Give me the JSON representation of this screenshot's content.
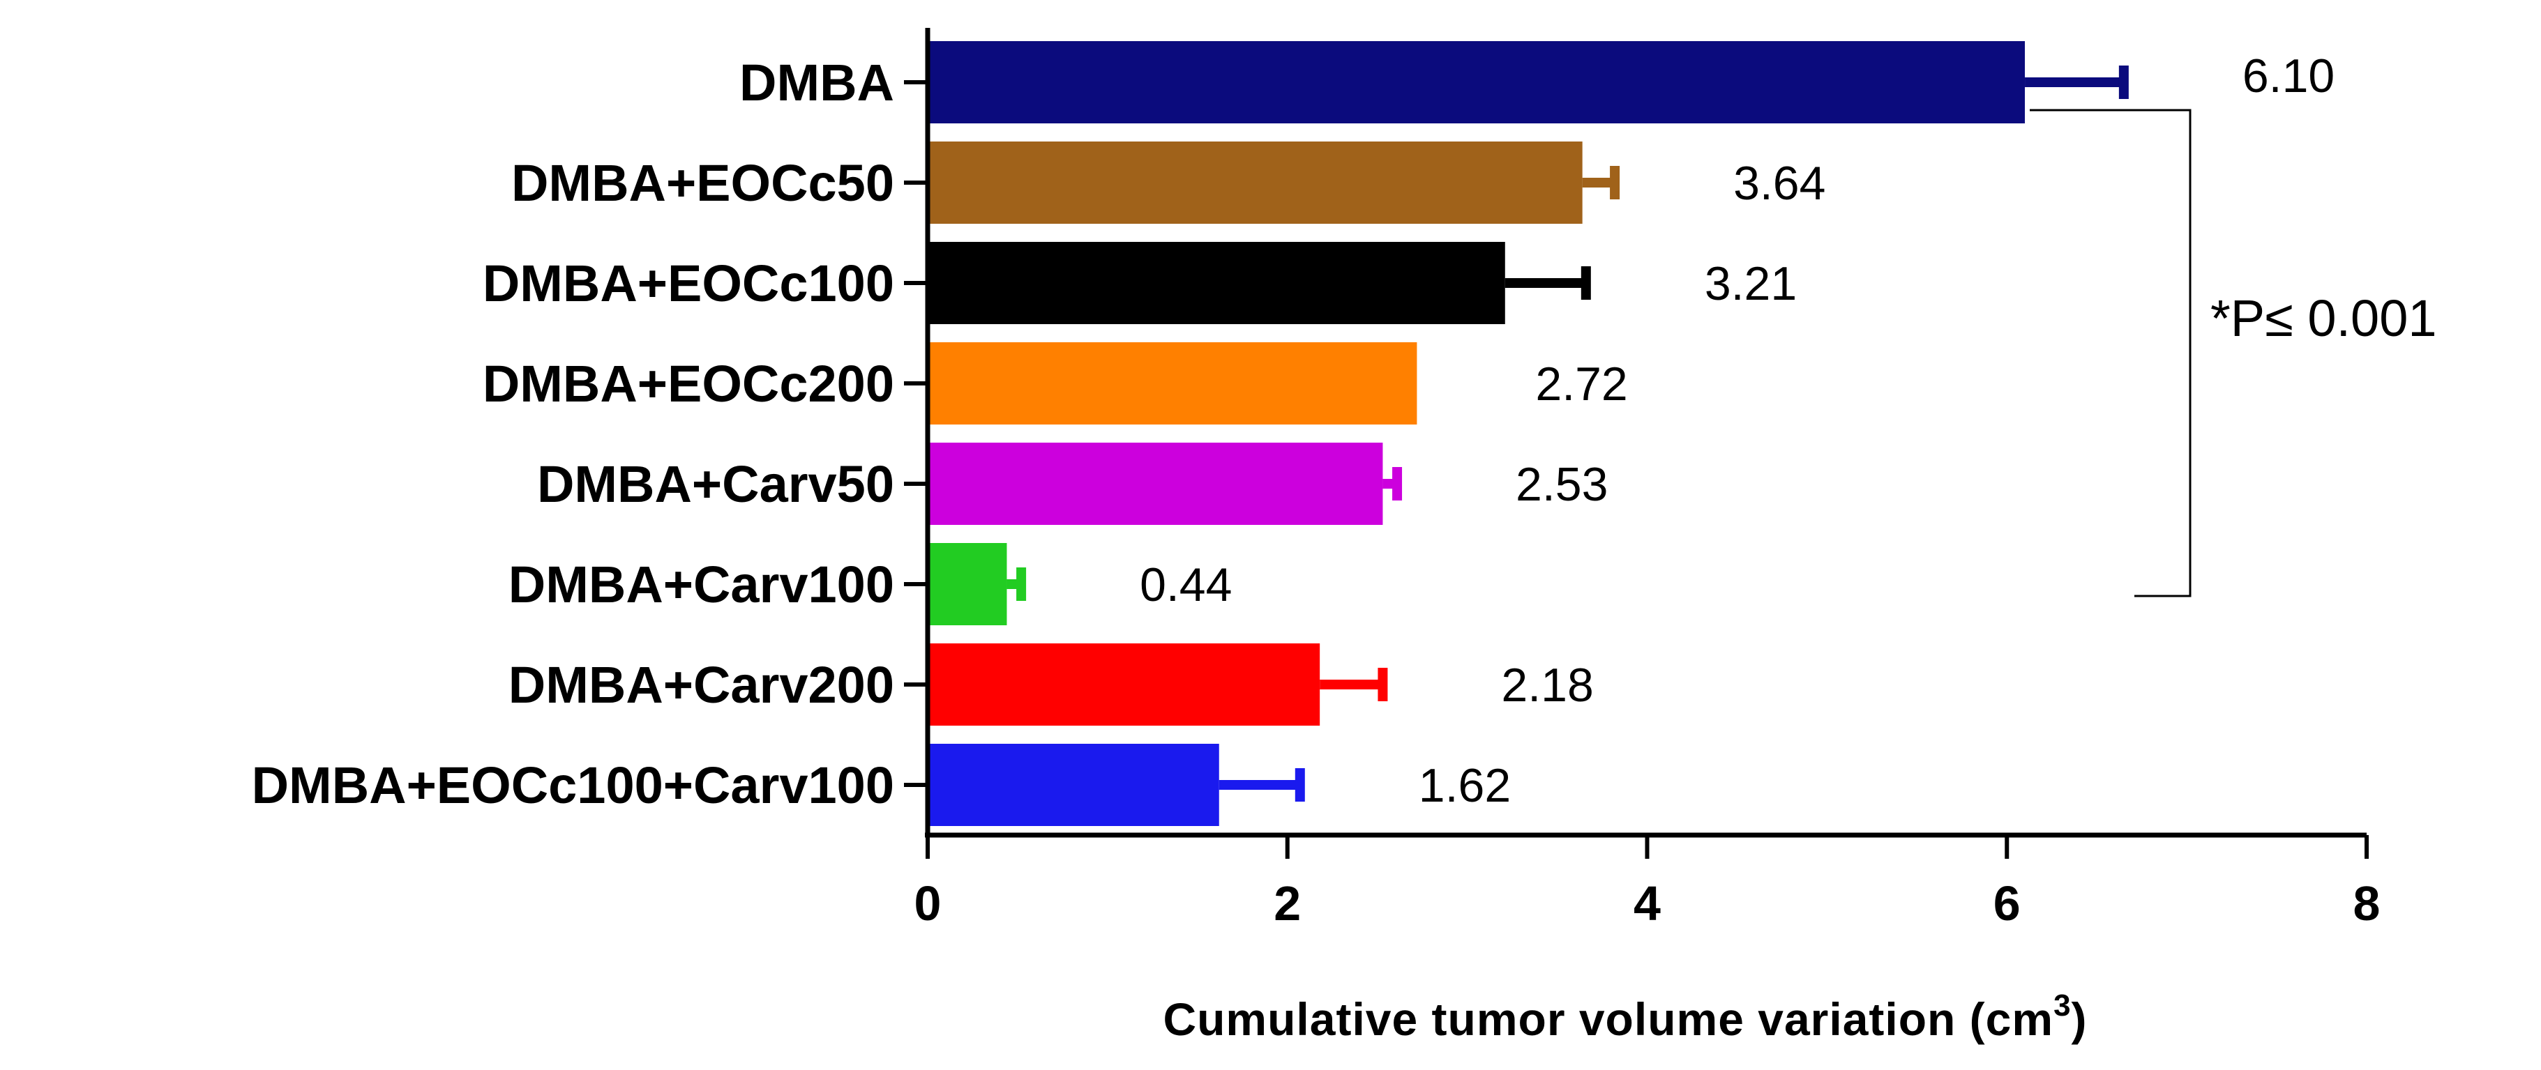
{
  "chart_data": {
    "type": "bar",
    "orientation": "horizontal",
    "categories": [
      "DMBA",
      "DMBA+EOCc50",
      "DMBA+EOCc100",
      "DMBA+EOCc200",
      "DMBA+Carv50",
      "DMBA+Carv100",
      "DMBA+Carv200",
      "DMBA+EOCc100+Carv100"
    ],
    "values": [
      6.1,
      3.64,
      3.21,
      2.72,
      2.53,
      0.44,
      2.18,
      1.62
    ],
    "errors": [
      0.55,
      0.18,
      0.45,
      0.0,
      0.08,
      0.08,
      0.35,
      0.45
    ],
    "value_labels": [
      "6.10",
      "3.64",
      "3.21",
      "2.72",
      "2.53",
      "0.44",
      "2.18",
      "1.62"
    ],
    "colors": [
      "#0b0b7d",
      "#a0621a",
      "#000000",
      "#ff8000",
      "#cc00dd",
      "#22cc22",
      "#ff0000",
      "#1a1aee"
    ],
    "xlim": [
      0,
      8
    ],
    "xticks": [
      "0",
      "2",
      "4",
      "6",
      "8"
    ],
    "xlabel": "Cumulative tumor volume variation (cm",
    "xlabel_sup": "3",
    "xlabel_end": ")",
    "ylabel": "",
    "title": "",
    "annotation": {
      "text": "*P≤ 0.001",
      "bracket_from": "DMBA",
      "bracket_to": "DMBA+Carv100"
    }
  }
}
